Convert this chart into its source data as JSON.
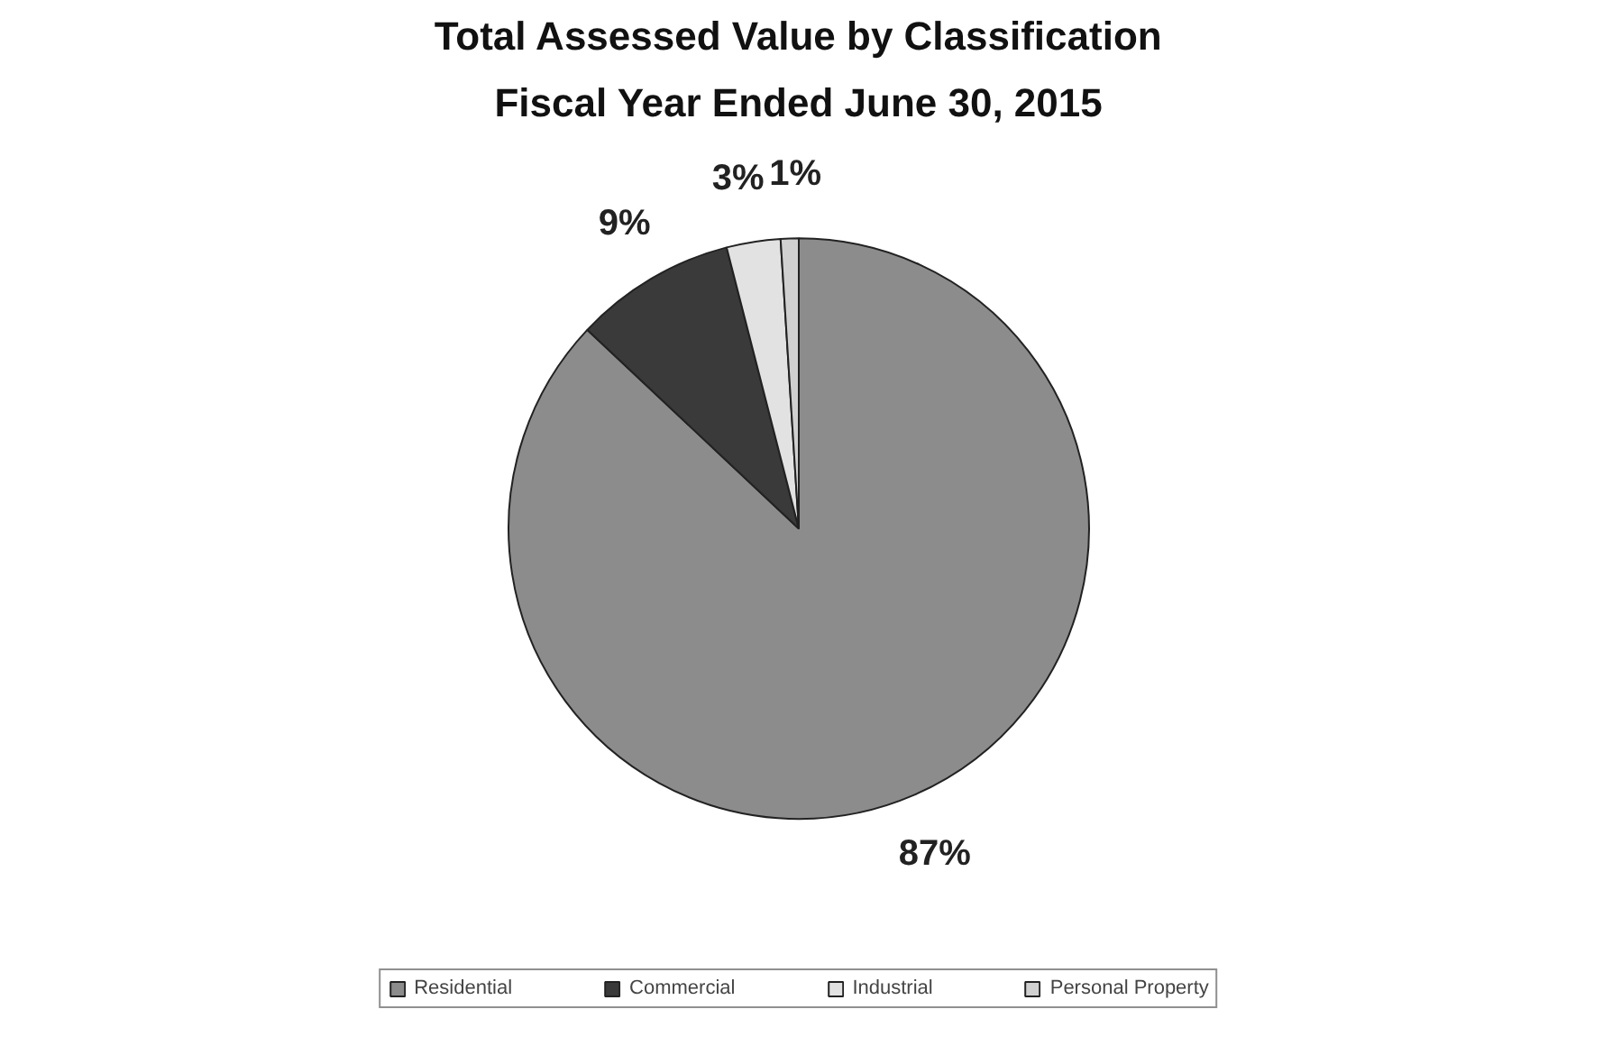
{
  "chart_data": {
    "type": "pie",
    "title": "Total Assessed Value by Classification",
    "subtitle": "Fiscal Year Ended June 30, 2015",
    "categories": [
      "Residential",
      "Commercial",
      "Industrial",
      "Personal Property"
    ],
    "values": [
      87,
      9,
      3,
      1
    ],
    "colors": [
      "#8c8c8c",
      "#3a3a3a",
      "#e2e2e2",
      "#d0d0d0"
    ],
    "value_labels": [
      "87%",
      "9%",
      "3%",
      "1%"
    ],
    "legend": "bottom"
  }
}
